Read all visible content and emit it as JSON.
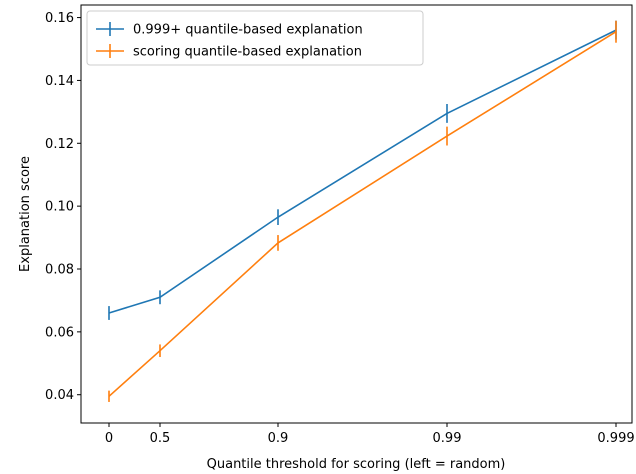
{
  "chart_data": {
    "type": "line",
    "title": "",
    "xlabel": "Quantile threshold for scoring (left = random)",
    "ylabel": "Explanation score",
    "categories": [
      "0",
      "0.5",
      "0.9",
      "0.99",
      "0.999"
    ],
    "x_scale": "log-odds-like spacing by -log10(1-q)",
    "ylim": [
      0.031,
      0.164
    ],
    "yticks": [
      "0.04",
      "0.06",
      "0.08",
      "0.10",
      "0.12",
      "0.14",
      "0.16"
    ],
    "legend_position": "upper-left",
    "grid": false,
    "series": [
      {
        "name": "0.999+ quantile-based explanation",
        "color": "#1f77b4",
        "values": [
          0.066,
          0.071,
          0.0965,
          0.1295,
          0.156
        ],
        "errors": [
          0.0022,
          0.0022,
          0.0025,
          0.003,
          0.003
        ]
      },
      {
        "name": "scoring quantile-based explanation",
        "color": "#ff7f0e",
        "values": [
          0.0395,
          0.054,
          0.0883,
          0.1223,
          0.1555
        ],
        "errors": [
          0.0018,
          0.002,
          0.0025,
          0.003,
          0.0035
        ]
      }
    ]
  }
}
